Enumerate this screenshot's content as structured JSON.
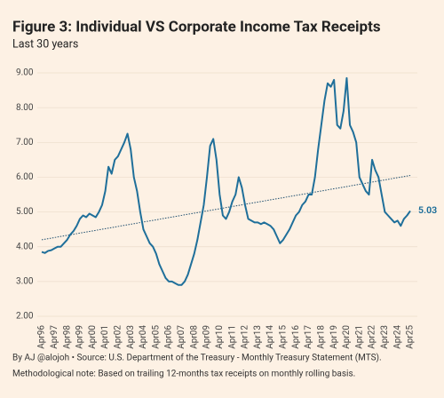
{
  "chart_data": {
    "type": "line",
    "title": "Figure 3: Individual VS Corporate Income Tax Receipts",
    "subtitle": "Last 30 years",
    "source": "By AJ @alojoh • Source: U.S. Department of the Treasury - Monthly Treasury Statement (MTS).",
    "note": "Methodological note: Based on trailing 12-months tax receipts on monthly rolling basis.",
    "categories": [
      "Apr96",
      null,
      null,
      null,
      "Apr97",
      null,
      null,
      null,
      "Apr98",
      null,
      null,
      null,
      "Apr99",
      null,
      null,
      null,
      "Apr00",
      null,
      null,
      null,
      "Apr01",
      null,
      null,
      null,
      "Apr02",
      null,
      null,
      null,
      "Apr03",
      null,
      null,
      null,
      "Apr04",
      null,
      null,
      null,
      "Apr05",
      null,
      null,
      null,
      "Apr06",
      null,
      null,
      null,
      "Apr07",
      null,
      null,
      null,
      "Apr08",
      null,
      null,
      null,
      "Apr09",
      null,
      null,
      null,
      "Apr10",
      null,
      null,
      null,
      "Apr11",
      null,
      null,
      null,
      "Apr12",
      null,
      null,
      null,
      "Apr13",
      null,
      null,
      null,
      "Apr14",
      null,
      null,
      null,
      "Apr15",
      null,
      null,
      null,
      "Apr16",
      null,
      null,
      null,
      "Apr17",
      null,
      null,
      null,
      "Apr18",
      null,
      null,
      null,
      "Apr19",
      null,
      null,
      null,
      "Apr20",
      null,
      null,
      null,
      "Apr21",
      null,
      null,
      null,
      "Apr22",
      null,
      null,
      null,
      "Apr23",
      null,
      null,
      null,
      "Apr24",
      null,
      null,
      null,
      "Apr25"
    ],
    "values": [
      3.85,
      3.82,
      3.88,
      3.9,
      3.95,
      4.0,
      4.0,
      4.1,
      4.2,
      4.35,
      4.45,
      4.6,
      4.8,
      4.9,
      4.85,
      4.95,
      4.9,
      4.85,
      5.0,
      5.2,
      5.6,
      6.3,
      6.1,
      6.5,
      6.6,
      6.8,
      7.0,
      7.25,
      6.8,
      6.0,
      5.6,
      5.0,
      4.5,
      4.3,
      4.1,
      4.0,
      3.8,
      3.5,
      3.3,
      3.1,
      3.0,
      3.0,
      2.95,
      2.9,
      2.9,
      3.0,
      3.2,
      3.5,
      3.8,
      4.2,
      4.7,
      5.2,
      6.0,
      6.9,
      7.1,
      6.5,
      5.5,
      4.9,
      4.8,
      5.0,
      5.3,
      5.5,
      6.0,
      5.7,
      5.2,
      4.8,
      4.75,
      4.7,
      4.7,
      4.65,
      4.7,
      4.65,
      4.6,
      4.5,
      4.3,
      4.1,
      4.2,
      4.35,
      4.5,
      4.7,
      4.9,
      5.0,
      5.2,
      5.3,
      5.5,
      5.5,
      6.0,
      6.8,
      7.5,
      8.2,
      8.7,
      8.6,
      8.8,
      7.5,
      7.4,
      7.9,
      8.85,
      7.5,
      7.3,
      7.0,
      6.0,
      5.8,
      5.6,
      5.5,
      6.5,
      6.2,
      6.0,
      5.5,
      5.0,
      4.9,
      4.8,
      4.7,
      4.75,
      4.6,
      4.8,
      4.9,
      5.03
    ],
    "color": "#1f6f9a",
    "trend": {
      "values": [
        4.2,
        6.05
      ],
      "color": "#1f4f6f"
    },
    "ylim": [
      2,
      9.2
    ],
    "yticks": [
      {
        "value": 2,
        "label": "2.00"
      },
      {
        "value": 3,
        "label": "3.00"
      },
      {
        "value": 4,
        "label": "4.00"
      },
      {
        "value": 5,
        "label": "5.00"
      },
      {
        "value": 6,
        "label": "6.00"
      },
      {
        "value": 7,
        "label": "7.00"
      },
      {
        "value": 8,
        "label": "8.00"
      },
      {
        "value": 9,
        "label": "9.00"
      }
    ],
    "grid": true
  }
}
